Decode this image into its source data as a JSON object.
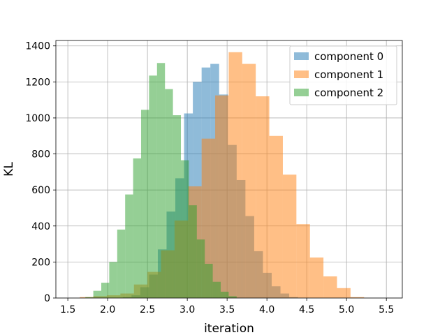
{
  "chart_data": {
    "type": "histogram",
    "xlabel": "iteration",
    "ylabel": "KL",
    "xlim": [
      1.35,
      5.7
    ],
    "ylim": [
      0,
      1430
    ],
    "xticks": [
      "1.5",
      "2.0",
      "2.5",
      "3.0",
      "3.5",
      "4.0",
      "4.5",
      "5.0",
      "5.5"
    ],
    "yticks": [
      "0",
      "200",
      "400",
      "600",
      "800",
      "1000",
      "1200",
      "1400"
    ],
    "grid": true,
    "legend_position": "top-right",
    "series": [
      {
        "name": "component 0",
        "color": "#1f77b4",
        "opacity": 0.5,
        "bins": [
          {
            "x0": 2.19,
            "x1": 2.3,
            "y": 5
          },
          {
            "x0": 2.3,
            "x1": 2.41,
            "y": 15
          },
          {
            "x0": 2.41,
            "x1": 2.52,
            "y": 60
          },
          {
            "x0": 2.52,
            "x1": 2.63,
            "y": 130
          },
          {
            "x0": 2.63,
            "x1": 2.74,
            "y": 270
          },
          {
            "x0": 2.74,
            "x1": 2.85,
            "y": 480
          },
          {
            "x0": 2.85,
            "x1": 2.96,
            "y": 665
          },
          {
            "x0": 2.96,
            "x1": 3.07,
            "y": 1025
          },
          {
            "x0": 3.07,
            "x1": 3.18,
            "y": 1200
          },
          {
            "x0": 3.18,
            "x1": 3.29,
            "y": 1280
          },
          {
            "x0": 3.29,
            "x1": 3.4,
            "y": 1300
          },
          {
            "x0": 3.4,
            "x1": 3.51,
            "y": 1130
          },
          {
            "x0": 3.51,
            "x1": 3.62,
            "y": 850
          },
          {
            "x0": 3.62,
            "x1": 3.73,
            "y": 655
          },
          {
            "x0": 3.73,
            "x1": 3.84,
            "y": 455
          },
          {
            "x0": 3.84,
            "x1": 3.95,
            "y": 260
          },
          {
            "x0": 3.95,
            "x1": 4.06,
            "y": 140
          },
          {
            "x0": 4.06,
            "x1": 4.17,
            "y": 65
          },
          {
            "x0": 4.17,
            "x1": 4.28,
            "y": 25
          },
          {
            "x0": 4.28,
            "x1": 4.39,
            "y": 5
          }
        ]
      },
      {
        "name": "component 1",
        "color": "#ff7f0e",
        "opacity": 0.5,
        "bins": [
          {
            "x0": 1.65,
            "x1": 1.82,
            "y": 5
          },
          {
            "x0": 1.82,
            "x1": 1.99,
            "y": 10
          },
          {
            "x0": 1.99,
            "x1": 2.16,
            "y": 15
          },
          {
            "x0": 2.16,
            "x1": 2.33,
            "y": 25
          },
          {
            "x0": 2.33,
            "x1": 2.5,
            "y": 75
          },
          {
            "x0": 2.5,
            "x1": 2.67,
            "y": 145
          },
          {
            "x0": 2.67,
            "x1": 2.84,
            "y": 265
          },
          {
            "x0": 2.84,
            "x1": 3.01,
            "y": 430
          },
          {
            "x0": 3.01,
            "x1": 3.18,
            "y": 620
          },
          {
            "x0": 3.18,
            "x1": 3.35,
            "y": 885
          },
          {
            "x0": 3.35,
            "x1": 3.52,
            "y": 1125
          },
          {
            "x0": 3.52,
            "x1": 3.69,
            "y": 1365
          },
          {
            "x0": 3.69,
            "x1": 3.86,
            "y": 1300
          },
          {
            "x0": 3.86,
            "x1": 4.03,
            "y": 1120
          },
          {
            "x0": 4.03,
            "x1": 4.2,
            "y": 900
          },
          {
            "x0": 4.2,
            "x1": 4.37,
            "y": 685
          },
          {
            "x0": 4.37,
            "x1": 4.54,
            "y": 410
          },
          {
            "x0": 4.54,
            "x1": 4.71,
            "y": 225
          },
          {
            "x0": 4.71,
            "x1": 4.88,
            "y": 120
          },
          {
            "x0": 4.88,
            "x1": 5.05,
            "y": 55
          },
          {
            "x0": 5.05,
            "x1": 5.22,
            "y": 5
          }
        ]
      },
      {
        "name": "component 2",
        "color": "#2ca02c",
        "opacity": 0.5,
        "bins": [
          {
            "x0": 1.72,
            "x1": 1.82,
            "y": 5
          },
          {
            "x0": 1.82,
            "x1": 1.92,
            "y": 40
          },
          {
            "x0": 1.92,
            "x1": 2.02,
            "y": 85
          },
          {
            "x0": 2.02,
            "x1": 2.12,
            "y": 200
          },
          {
            "x0": 2.12,
            "x1": 2.22,
            "y": 380
          },
          {
            "x0": 2.22,
            "x1": 2.32,
            "y": 575
          },
          {
            "x0": 2.32,
            "x1": 2.42,
            "y": 775
          },
          {
            "x0": 2.42,
            "x1": 2.52,
            "y": 1045
          },
          {
            "x0": 2.52,
            "x1": 2.62,
            "y": 1235
          },
          {
            "x0": 2.62,
            "x1": 2.72,
            "y": 1305
          },
          {
            "x0": 2.72,
            "x1": 2.82,
            "y": 1160
          },
          {
            "x0": 2.82,
            "x1": 2.92,
            "y": 1015
          },
          {
            "x0": 2.92,
            "x1": 3.02,
            "y": 765
          },
          {
            "x0": 3.02,
            "x1": 3.12,
            "y": 515
          },
          {
            "x0": 3.12,
            "x1": 3.22,
            "y": 325
          },
          {
            "x0": 3.22,
            "x1": 3.32,
            "y": 190
          },
          {
            "x0": 3.32,
            "x1": 3.42,
            "y": 90
          },
          {
            "x0": 3.42,
            "x1": 3.52,
            "y": 35
          },
          {
            "x0": 3.52,
            "x1": 3.62,
            "y": 10
          }
        ]
      }
    ]
  }
}
